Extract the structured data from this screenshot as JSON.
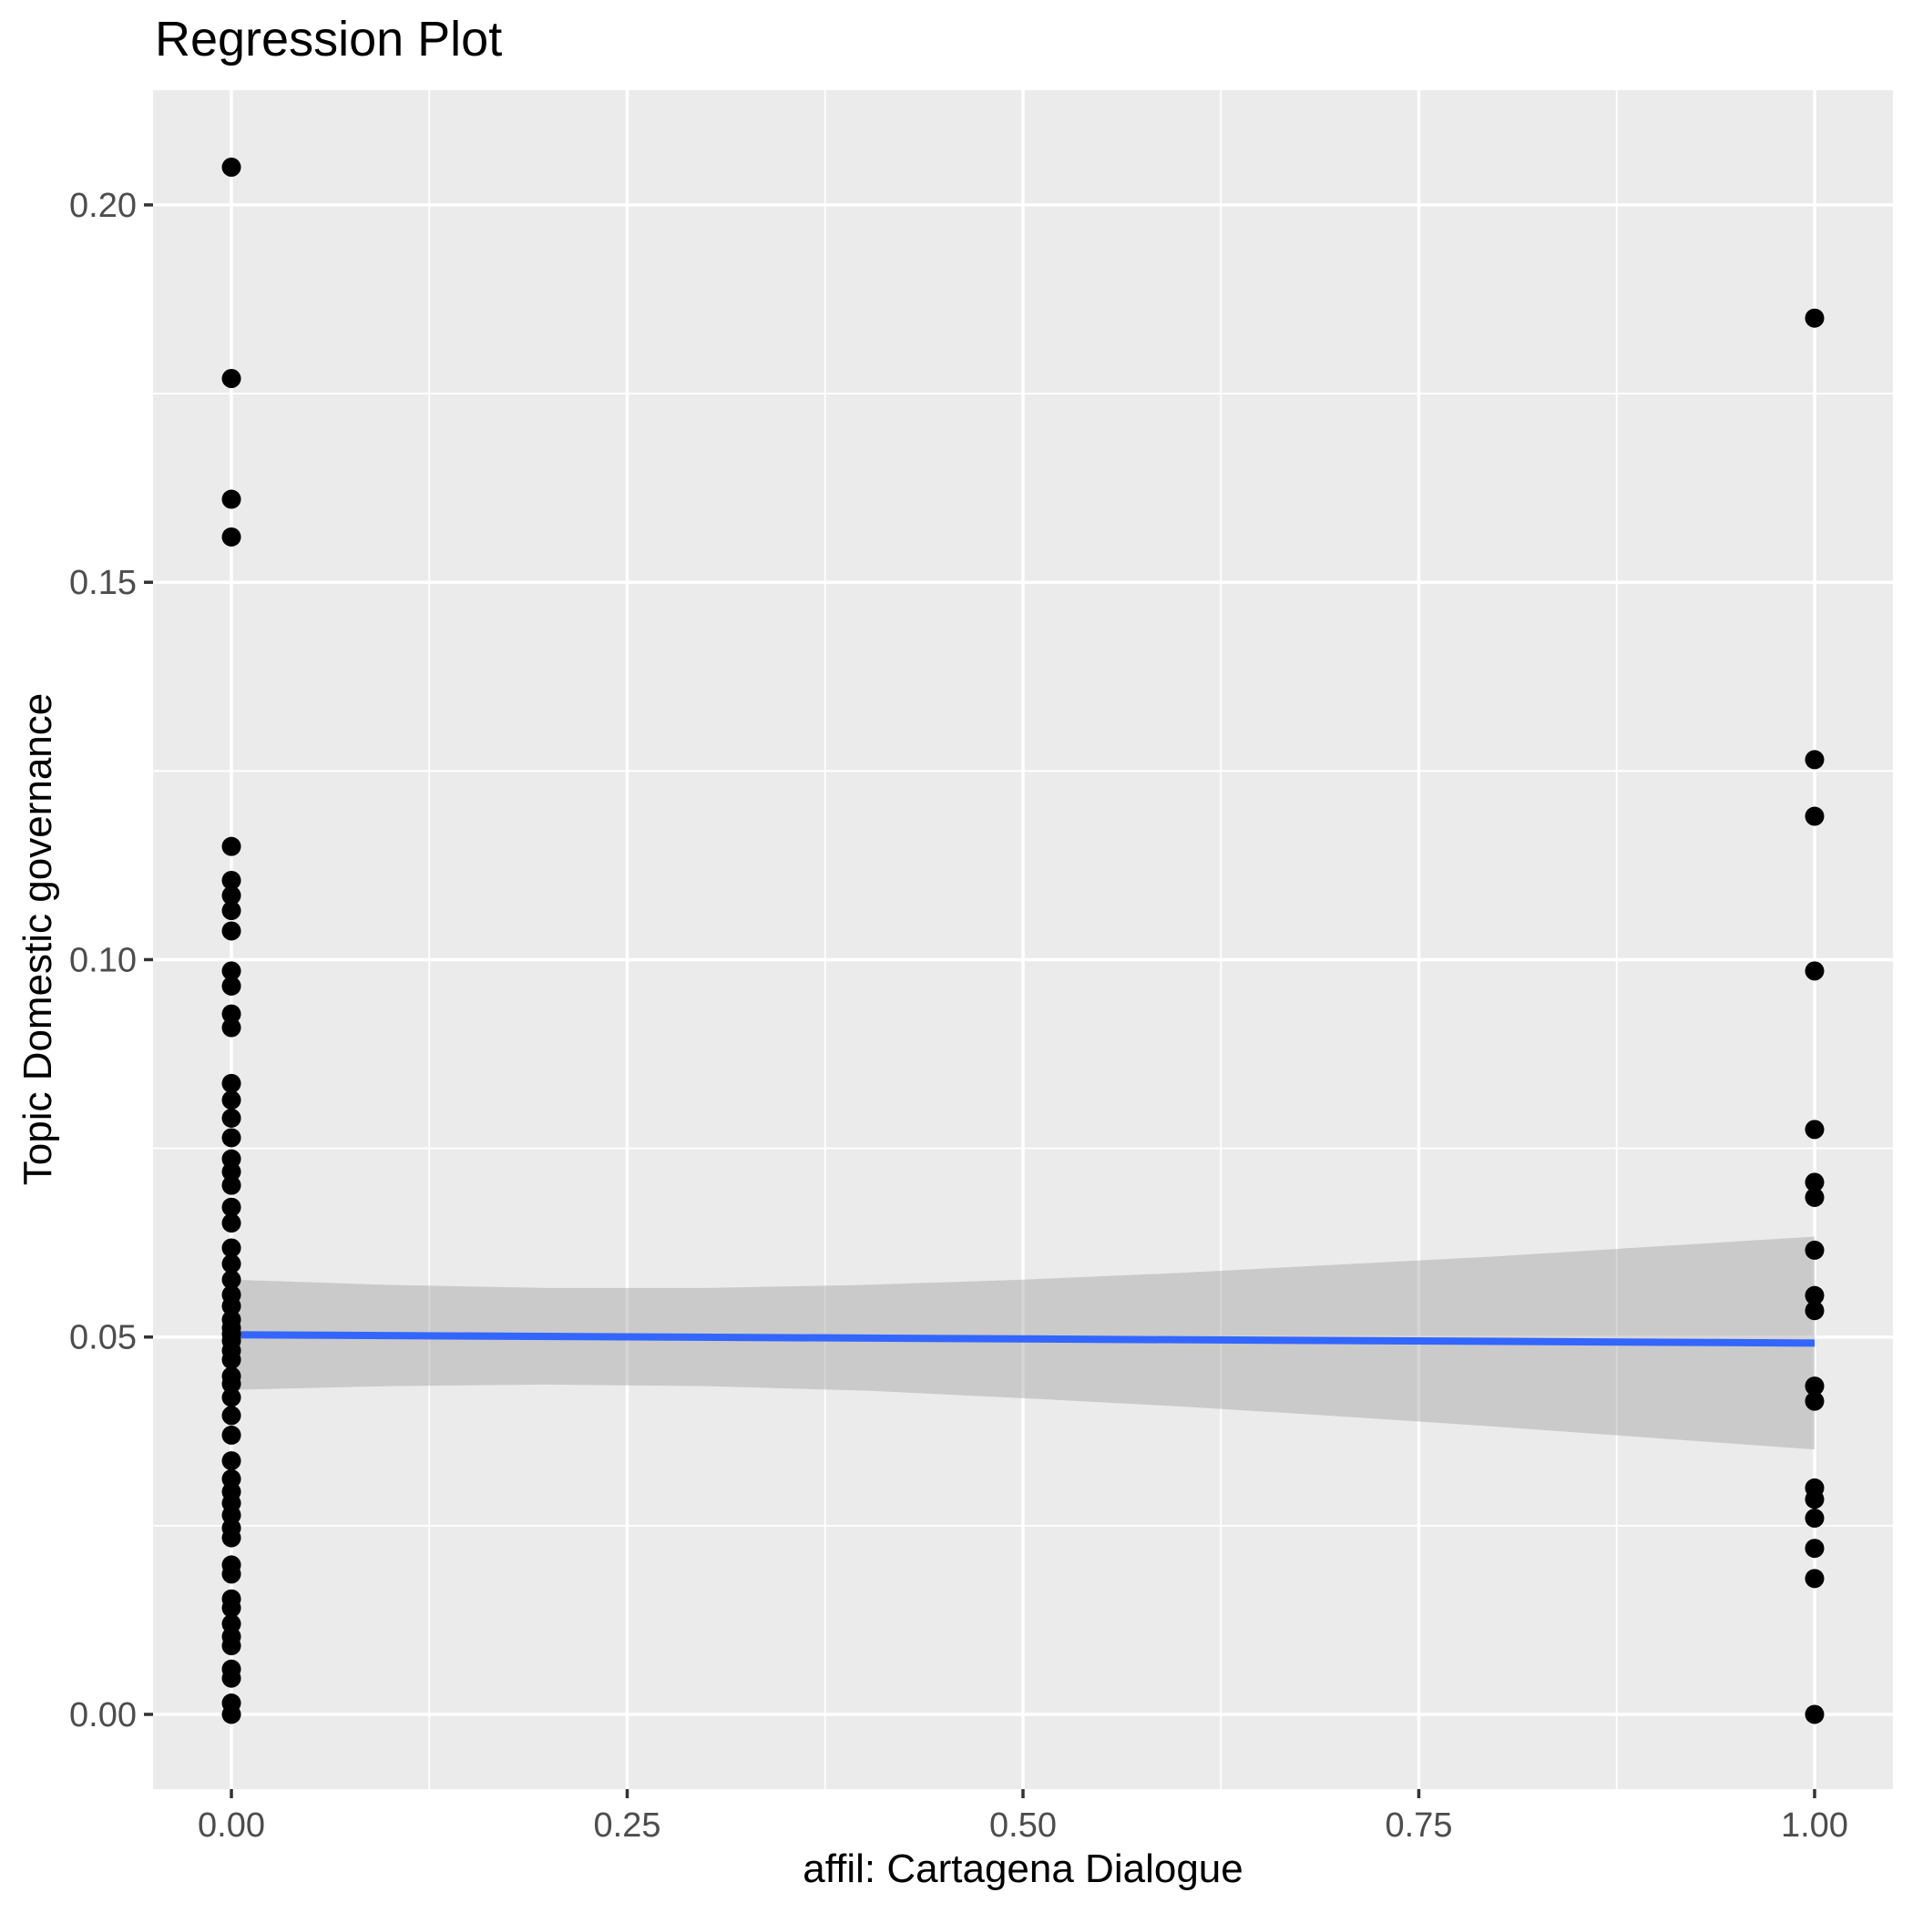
{
  "chart_data": {
    "type": "scatter",
    "title": "Regression Plot",
    "xlabel": "affil: Cartagena Dialogue",
    "ylabel": "Topic Domestic governance",
    "xlim": [
      -0.0495,
      1.0495
    ],
    "ylim": [
      -0.0099,
      0.2152
    ],
    "grid": true,
    "legend_position": "none",
    "x_axis": {
      "major_ticks": [
        0,
        0.25,
        0.5,
        0.75,
        1
      ],
      "tick_labels": [
        "0.00",
        "0.25",
        "0.50",
        "0.75",
        "1.00"
      ],
      "minor_ticks": [
        0.125,
        0.375,
        0.625,
        0.875
      ]
    },
    "y_axis": {
      "major_ticks": [
        0,
        0.05,
        0.1,
        0.15,
        0.2
      ],
      "tick_labels": [
        "0.00",
        "0.05",
        "0.10",
        "0.15",
        "0.20"
      ],
      "minor_ticks": [
        0.025,
        0.075,
        0.125,
        0.175
      ]
    },
    "series": [
      {
        "name": "affil = 0",
        "x": 0,
        "y": [
          0.205,
          0.177,
          0.161,
          0.156,
          0.115,
          0.1105,
          0.1085,
          0.1065,
          0.1038,
          0.0985,
          0.0965,
          0.0928,
          0.091,
          0.0836,
          0.0814,
          0.079,
          0.0764,
          0.0736,
          0.0719,
          0.0701,
          0.0672,
          0.0651,
          0.0618,
          0.0597,
          0.0576,
          0.0556,
          0.0541,
          0.0523,
          0.0512,
          0.0504,
          0.0495,
          0.0482,
          0.047,
          0.0448,
          0.0438,
          0.042,
          0.0396,
          0.037,
          0.0336,
          0.0312,
          0.0295,
          0.028,
          0.0264,
          0.0247,
          0.0234,
          0.0198,
          0.0186,
          0.0153,
          0.0141,
          0.012,
          0.0103,
          0.0091,
          0.006,
          0.0048,
          0.0015,
          0.0
        ]
      },
      {
        "name": "affil = 1",
        "x": 1,
        "y": [
          0.185,
          0.1265,
          0.119,
          0.0985,
          0.0775,
          0.0705,
          0.0685,
          0.0615,
          0.0555,
          0.0535,
          0.0435,
          0.0415,
          0.03,
          0.0285,
          0.026,
          0.022,
          0.018,
          0.0
        ]
      }
    ],
    "regression_line": {
      "x": [
        0,
        1
      ],
      "y": [
        0.0503,
        0.0492
      ]
    },
    "confidence_band": {
      "x": [
        0,
        0.1,
        0.2,
        0.3,
        0.4,
        0.5,
        0.6,
        0.7,
        0.8,
        0.9,
        1
      ],
      "upper": [
        0.0576,
        0.0569,
        0.0565,
        0.0565,
        0.0569,
        0.0576,
        0.0585,
        0.0596,
        0.0607,
        0.062,
        0.0633
      ],
      "lower": [
        0.043,
        0.0435,
        0.0437,
        0.0435,
        0.0429,
        0.0419,
        0.0408,
        0.0395,
        0.0381,
        0.0366,
        0.0351
      ]
    },
    "colors": {
      "panel_background": "#EBEBEB",
      "gridline": "#FFFFFF",
      "point": "#000000",
      "regression_line": "#3366FF",
      "confidence_band": "rgba(153,153,153,0.40)",
      "tick_label": "#4D4D4D",
      "tick_mark": "#333333",
      "title": "#000000"
    }
  }
}
